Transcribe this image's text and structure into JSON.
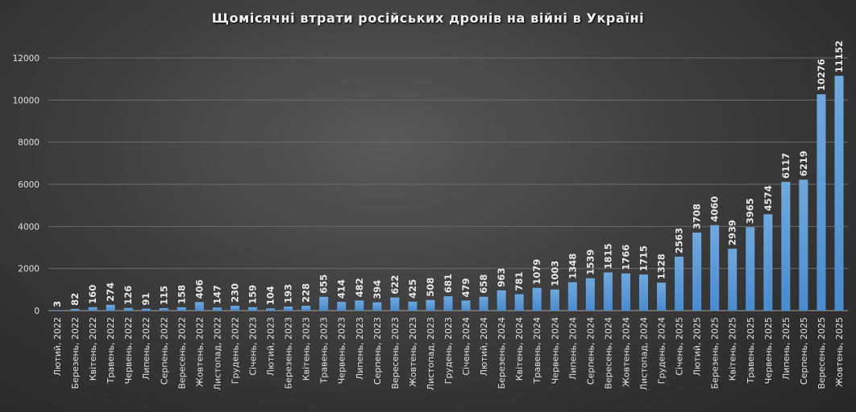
{
  "chart_data": {
    "type": "bar",
    "title": "Щомісячні  втрати  російських  дронів  на  війні  в Україні",
    "xlabel": "",
    "ylabel": "",
    "ylim": [
      0,
      12000
    ],
    "yticks": [
      0,
      2000,
      4000,
      6000,
      8000,
      10000,
      12000
    ],
    "grid": true,
    "legend": null,
    "bar_color": "#5b9bd5",
    "categories": [
      "Лютий, 2022",
      "Березень, 2022",
      "Квітень, 2022",
      "Травень, 2022",
      "Червень, 2022",
      "Липень, 2022",
      "Серпень, 2022",
      "Вересень, 2022",
      "Жовтень, 2022",
      "Листопад, 2022",
      "Грудень, 2022",
      "Січень, 2023",
      "Лютий, 2023",
      "Березень, 2023",
      "Квітень, 2023",
      "Травень, 2023",
      "Червень, 2023",
      "Липень, 2023",
      "Серпень, 2023",
      "Вересень, 2023",
      "Жовтень, 2023",
      "Листопад, 2023",
      "Грудень, 2023",
      "Січень, 2024",
      "Лютий, 2024",
      "Березень, 2024",
      "Квітень, 2024",
      "Травень, 2024",
      "Червень, 2024",
      "Липень, 2024",
      "Серпень, 2024",
      "Вересень, 2024",
      "Жовтень, 2024",
      "Листопад, 2024",
      "Грудень, 2024",
      "Січень, 2025",
      "Лютий, 2025",
      "Березень, 2025",
      "Квітень, 2025",
      "Травень, 2025",
      "Червень, 2025",
      "Липень, 2025",
      "Серпень, 2025",
      "Вересень, 2025",
      "Жовтень, 2025"
    ],
    "values": [
      3,
      82,
      160,
      274,
      126,
      91,
      115,
      158,
      406,
      147,
      230,
      159,
      104,
      193,
      228,
      655,
      414,
      482,
      394,
      622,
      425,
      508,
      681,
      479,
      658,
      963,
      781,
      1079,
      1003,
      1348,
      1539,
      1815,
      1766,
      1715,
      1328,
      2563,
      3708,
      4060,
      2939,
      3965,
      4574,
      6117,
      6219,
      10276,
      11152
    ]
  }
}
